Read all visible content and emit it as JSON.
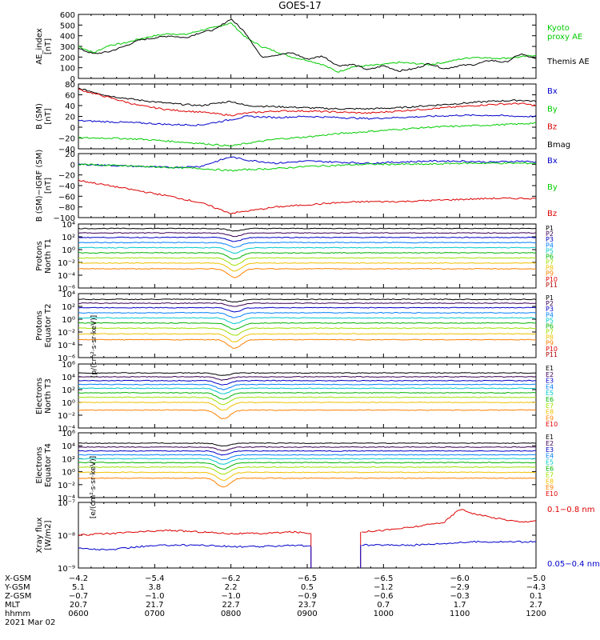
{
  "title": "GOES-17",
  "date": "2021 Mar 02",
  "colors": {
    "black": "#000000",
    "red": "#dd0000",
    "green": "#00cc00",
    "blue": "#0000cc",
    "p_palette": [
      "#000000",
      "#3b0055",
      "#0000c8",
      "#0080ff",
      "#00c8c8",
      "#00b400",
      "#a0e000",
      "#f0c000",
      "#ff8000",
      "#e00000",
      "#b00000"
    ]
  },
  "chart_data": [
    {
      "type": "line",
      "panel": "ae",
      "ylabel": [
        "AE_index",
        "[nT]"
      ],
      "ylim": [
        0,
        600
      ],
      "yticks": [
        "600",
        "500",
        "400",
        "300",
        "200",
        "100",
        "0"
      ],
      "log": false,
      "labels": [
        {
          "text": "Kyoto",
          "color": "#00cc00"
        },
        {
          "text": "proxy AE",
          "color": "#00cc00"
        },
        {
          "text": "Themis AE",
          "color": "#000000"
        }
      ],
      "series": [
        {
          "name": "Kyoto proxy AE",
          "color": "#00cc00",
          "x": [
            6.0,
            6.2,
            6.4,
            6.6,
            6.8,
            7.0,
            7.2,
            7.4,
            7.6,
            7.8,
            8.0,
            8.2,
            8.4,
            8.6,
            8.8,
            9.0,
            9.2,
            9.4,
            9.6,
            9.8,
            10.0,
            10.2,
            10.4,
            10.6,
            10.8,
            11.0,
            11.2,
            11.4,
            11.6,
            11.8,
            12.0
          ],
          "y": [
            300,
            240,
            310,
            330,
            370,
            400,
            420,
            410,
            450,
            480,
            520,
            380,
            300,
            250,
            200,
            170,
            130,
            60,
            110,
            120,
            130,
            150,
            140,
            130,
            150,
            180,
            200,
            190,
            190,
            200,
            220
          ]
        },
        {
          "name": "Themis AE",
          "color": "#000000",
          "x": [
            6.0,
            6.2,
            6.4,
            6.6,
            6.8,
            7.0,
            7.2,
            7.4,
            7.6,
            7.8,
            8.0,
            8.2,
            8.4,
            8.6,
            8.8,
            9.0,
            9.2,
            9.4,
            9.6,
            9.8,
            10.0,
            10.2,
            10.4,
            10.6,
            10.8,
            11.0,
            11.2,
            11.4,
            11.6,
            11.8,
            12.0
          ],
          "y": [
            280,
            230,
            250,
            300,
            360,
            380,
            400,
            380,
            430,
            460,
            560,
            420,
            200,
            220,
            240,
            180,
            210,
            120,
            130,
            80,
            120,
            70,
            90,
            140,
            90,
            120,
            130,
            170,
            150,
            230,
            180
          ]
        }
      ]
    },
    {
      "type": "line",
      "panel": "bsm",
      "ylabel": [
        "B (SM)",
        "[nT]"
      ],
      "ylim": [
        -40,
        80
      ],
      "yticks": [
        "80",
        "60",
        "40",
        "20",
        "0",
        "−20",
        "−40"
      ],
      "log": false,
      "labels": [
        {
          "text": "Bx",
          "color": "#0000cc"
        },
        {
          "text": "By",
          "color": "#00cc00"
        },
        {
          "text": "Bz",
          "color": "#dd0000"
        },
        {
          "text": "Bmag",
          "color": "#000000"
        }
      ],
      "series": [
        {
          "name": "Bmag",
          "color": "#000000",
          "x": [
            6.0,
            6.4,
            6.8,
            7.2,
            7.6,
            8.0,
            8.2,
            8.6,
            9.0,
            9.4,
            9.8,
            10.2,
            10.6,
            11.0,
            11.4,
            11.8,
            12.0
          ],
          "y": [
            72,
            58,
            50,
            44,
            40,
            48,
            40,
            38,
            36,
            34,
            34,
            36,
            40,
            44,
            48,
            50,
            48
          ]
        },
        {
          "name": "Bz",
          "color": "#dd0000",
          "x": [
            6.0,
            6.4,
            6.8,
            7.2,
            7.6,
            8.0,
            8.2,
            8.6,
            9.0,
            9.4,
            9.8,
            10.2,
            10.6,
            11.0,
            11.4,
            11.8,
            12.0
          ],
          "y": [
            70,
            55,
            40,
            32,
            28,
            22,
            26,
            30,
            30,
            28,
            26,
            30,
            34,
            38,
            42,
            44,
            40
          ]
        },
        {
          "name": "Bx",
          "color": "#0000cc",
          "x": [
            6.0,
            6.4,
            6.8,
            7.2,
            7.6,
            8.0,
            8.2,
            8.6,
            9.0,
            9.4,
            9.8,
            10.2,
            10.6,
            11.0,
            11.4,
            11.8,
            12.0
          ],
          "y": [
            12,
            10,
            8,
            5,
            4,
            14,
            20,
            18,
            20,
            18,
            16,
            18,
            20,
            22,
            22,
            20,
            20
          ]
        },
        {
          "name": "By",
          "color": "#00cc00",
          "x": [
            6.0,
            6.4,
            6.8,
            7.2,
            7.6,
            8.0,
            8.2,
            8.6,
            9.0,
            9.4,
            9.8,
            10.2,
            10.6,
            11.0,
            11.4,
            11.8,
            12.0
          ],
          "y": [
            -20,
            -20,
            -22,
            -26,
            -30,
            -35,
            -30,
            -22,
            -18,
            -12,
            -8,
            -4,
            0,
            2,
            4,
            6,
            8
          ]
        }
      ]
    },
    {
      "type": "line",
      "panel": "bigrf",
      "ylabel": [
        "B (SM)−IGRF (SM)",
        "[nT]"
      ],
      "ylim": [
        -100,
        20
      ],
      "yticks": [
        "20",
        "0",
        "−20",
        "−40",
        "−60",
        "−80",
        "−100"
      ],
      "log": false,
      "labels": [
        {
          "text": "Bx",
          "color": "#0000cc"
        },
        {
          "text": "By",
          "color": "#00cc00"
        },
        {
          "text": "Bz",
          "color": "#dd0000"
        }
      ],
      "series": [
        {
          "name": "Bx",
          "color": "#0000cc",
          "x": [
            6.0,
            6.4,
            6.8,
            7.2,
            7.6,
            8.0,
            8.2,
            8.6,
            9.0,
            9.4,
            9.8,
            10.2,
            10.6,
            11.0,
            11.4,
            11.8,
            12.0
          ],
          "y": [
            0,
            -2,
            -4,
            -6,
            -4,
            14,
            8,
            2,
            6,
            4,
            2,
            4,
            6,
            6,
            4,
            6,
            4
          ]
        },
        {
          "name": "By",
          "color": "#00cc00",
          "x": [
            6.0,
            6.4,
            6.8,
            7.2,
            7.6,
            8.0,
            8.2,
            8.6,
            9.0,
            9.4,
            9.8,
            10.2,
            10.6,
            11.0,
            11.4,
            11.8,
            12.0
          ],
          "y": [
            0,
            -2,
            -4,
            -6,
            -8,
            -12,
            -10,
            -8,
            -4,
            -2,
            0,
            0,
            0,
            2,
            2,
            2,
            2
          ]
        },
        {
          "name": "Bz",
          "color": "#dd0000",
          "x": [
            6.0,
            6.4,
            6.8,
            7.2,
            7.6,
            8.0,
            8.2,
            8.6,
            9.0,
            9.4,
            9.8,
            10.2,
            10.6,
            11.0,
            11.4,
            11.8,
            12.0
          ],
          "y": [
            -30,
            -40,
            -50,
            -60,
            -72,
            -92,
            -88,
            -80,
            -76,
            -72,
            -70,
            -70,
            -68,
            -66,
            -64,
            -64,
            -64
          ]
        }
      ]
    },
    {
      "type": "line",
      "panel": "pn",
      "ylabel": [
        "Protons",
        "North T1"
      ],
      "log": true,
      "ylim_exp": [
        -6,
        4
      ],
      "yticks": [
        "10⁴",
        "10²",
        "10⁰",
        "10⁻²",
        "10⁻⁴",
        "10⁻⁶"
      ],
      "labels": [
        {
          "text": "P1"
        },
        {
          "text": "P2"
        },
        {
          "text": "P3"
        },
        {
          "text": "P4"
        },
        {
          "text": "P5"
        },
        {
          "text": "P6"
        },
        {
          "text": "P7"
        },
        {
          "text": "P8"
        },
        {
          "text": "P9"
        },
        {
          "text": "P10"
        },
        {
          "text": "P11"
        }
      ],
      "levels": [
        3.3,
        2.6,
        1.9,
        1.1,
        0.3,
        -0.5,
        -1.3,
        -2.1,
        -3.0
      ]
    },
    {
      "type": "line",
      "panel": "pe",
      "ylabel": [
        "Protons",
        "Equator T2"
      ],
      "log": true,
      "ylim_exp": [
        -6,
        4
      ],
      "yticks": [
        "10⁴",
        "10²",
        "10⁰",
        "10⁻²",
        "10⁻⁴",
        "10⁻⁶"
      ],
      "labels": [
        {
          "text": "P1"
        },
        {
          "text": "P2"
        },
        {
          "text": "P3"
        },
        {
          "text": "P4"
        },
        {
          "text": "P5"
        },
        {
          "text": "P6"
        },
        {
          "text": "P7"
        },
        {
          "text": "P8"
        },
        {
          "text": "P9"
        },
        {
          "text": "P10"
        },
        {
          "text": "P11"
        }
      ],
      "levels": [
        3.1,
        2.5,
        1.8,
        1.0,
        0.2,
        -0.6,
        -1.4,
        -2.3,
        -3.2
      ]
    },
    {
      "type": "line",
      "panel": "en",
      "ylabel": [
        "Electrons",
        "North T3"
      ],
      "log": true,
      "ylim_exp": [
        -4,
        6
      ],
      "yticks": [
        "10⁶",
        "10⁴",
        "10²",
        "10⁰",
        "10⁻²",
        "10⁻⁴"
      ],
      "labels": [
        {
          "text": "E1"
        },
        {
          "text": "E2"
        },
        {
          "text": "E3"
        },
        {
          "text": "E4"
        },
        {
          "text": "E5"
        },
        {
          "text": "E6"
        },
        {
          "text": "E7"
        },
        {
          "text": "E8"
        },
        {
          "text": "E9"
        },
        {
          "text": "E10"
        }
      ],
      "levels": [
        4.6,
        4.0,
        3.4,
        2.8,
        2.2,
        1.5,
        0.8,
        0.0,
        -1.2
      ]
    },
    {
      "type": "line",
      "panel": "ee",
      "ylabel": [
        "Electrons",
        "Equator T4"
      ],
      "log": true,
      "ylim_exp": [
        -4,
        6
      ],
      "yticks": [
        "10⁶",
        "10⁴",
        "10²",
        "10⁰",
        "10⁻²",
        "10⁻⁴"
      ],
      "labels": [
        {
          "text": "E1"
        },
        {
          "text": "E2"
        },
        {
          "text": "E3"
        },
        {
          "text": "E4"
        },
        {
          "text": "E5"
        },
        {
          "text": "E6"
        },
        {
          "text": "E7"
        },
        {
          "text": "E8"
        },
        {
          "text": "E9"
        },
        {
          "text": "E10"
        }
      ],
      "levels": [
        4.4,
        3.8,
        3.2,
        2.6,
        2.0,
        1.4,
        0.7,
        -0.1,
        -1.0
      ]
    },
    {
      "type": "line",
      "panel": "xray",
      "ylabel": [
        "Xray flux",
        "[W/m2]"
      ],
      "log": true,
      "ylim_exp": [
        -9,
        -7
      ],
      "yticks": [
        "10⁻⁷",
        "10⁻⁸",
        "10⁻⁹"
      ],
      "labels": [
        {
          "text": "0.1−0.8 nm",
          "color": "#dd0000"
        },
        {
          "text": "0.05−0.4 nm",
          "color": "#0000cc"
        }
      ],
      "series": [
        {
          "name": "0.1−0.8 nm",
          "color": "#dd0000",
          "x": [
            6.0,
            6.4,
            6.8,
            7.2,
            7.6,
            8.0,
            8.4,
            8.8,
            9.1,
            9.65,
            10.0,
            10.4,
            10.8,
            11.0,
            11.2,
            11.4,
            11.8,
            12.0
          ],
          "y": [
            -8.0,
            -7.95,
            -7.9,
            -7.85,
            -7.9,
            -7.95,
            -7.95,
            -7.9,
            -7.95,
            -7.9,
            -7.85,
            -7.75,
            -7.6,
            -7.2,
            -7.35,
            -7.45,
            -7.6,
            -7.55
          ]
        },
        {
          "name": "0.05−0.4 nm",
          "color": "#0000cc",
          "x": [
            6.0,
            6.4,
            6.8,
            7.2,
            7.6,
            8.0,
            8.4,
            8.8,
            9.1,
            9.65,
            10.0,
            10.4,
            10.8,
            11.2,
            11.6,
            12.0
          ],
          "y": [
            -8.4,
            -8.45,
            -8.35,
            -8.3,
            -8.3,
            -8.35,
            -8.35,
            -8.3,
            -8.35,
            -8.3,
            -8.3,
            -8.3,
            -8.25,
            -8.2,
            -8.2,
            -8.2
          ]
        }
      ]
    }
  ],
  "footer": {
    "rows": [
      {
        "label": "X-GSM",
        "values": [
          "−4.2",
          "−5.4",
          "−6.2",
          "−6.5",
          "−6.5",
          "−6.0",
          "−5.0"
        ]
      },
      {
        "label": "Y-GSM",
        "values": [
          "5.1",
          "3.8",
          "2.2",
          "0.5",
          "−1.2",
          "−2.9",
          "−4.3"
        ]
      },
      {
        "label": "Z-GSM",
        "values": [
          "−0.7",
          "−1.0",
          "−1.0",
          "−0.9",
          "−0.6",
          "−0.3",
          "0.1"
        ]
      },
      {
        "label": "MLT",
        "values": [
          "20.7",
          "21.7",
          "22.7",
          "23.7",
          "0.7",
          "1.7",
          "2.7"
        ]
      },
      {
        "label": "hhmm",
        "values": [
          "0600",
          "0700",
          "0800",
          "0900",
          "1000",
          "1100",
          "1200"
        ]
      }
    ]
  },
  "xlim": [
    6.0,
    12.0
  ]
}
